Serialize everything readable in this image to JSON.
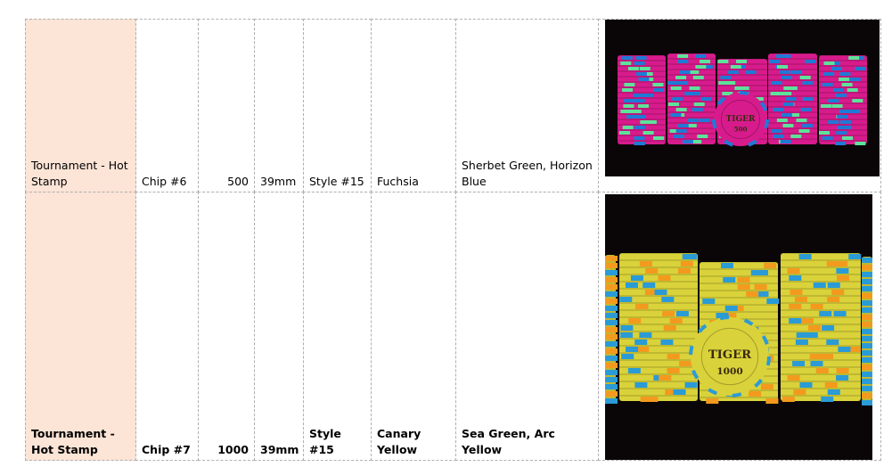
{
  "rows": [
    {
      "type": "Tournament - Hot Stamp",
      "chip": "Chip #6",
      "value": "500",
      "size": "39mm",
      "style": "Style #15",
      "base_color": "Fuchsia",
      "accent_colors": "Sherbet Green, Horizon Blue",
      "image": {
        "logo_text": "TIGER",
        "denomination": "500",
        "chip_color": "#d81b8c",
        "insert_colors": [
          "#5de39a",
          "#1f7ad6"
        ]
      }
    },
    {
      "type": "Tournament - Hot Stamp",
      "chip": "Chip #7",
      "value": "1000",
      "size": "39mm",
      "style": "Style #15",
      "base_color": "Canary Yellow",
      "accent_colors": "Sea Green, Arc Yellow",
      "image": {
        "logo_text": "TIGER",
        "denomination": "1000",
        "chip_color": "#d9d23a",
        "insert_colors": [
          "#f39a1e",
          "#2a9bd6"
        ]
      }
    }
  ],
  "colors": {
    "highlight_cell": "#fce4d6",
    "grid": "#b0b0b0"
  }
}
